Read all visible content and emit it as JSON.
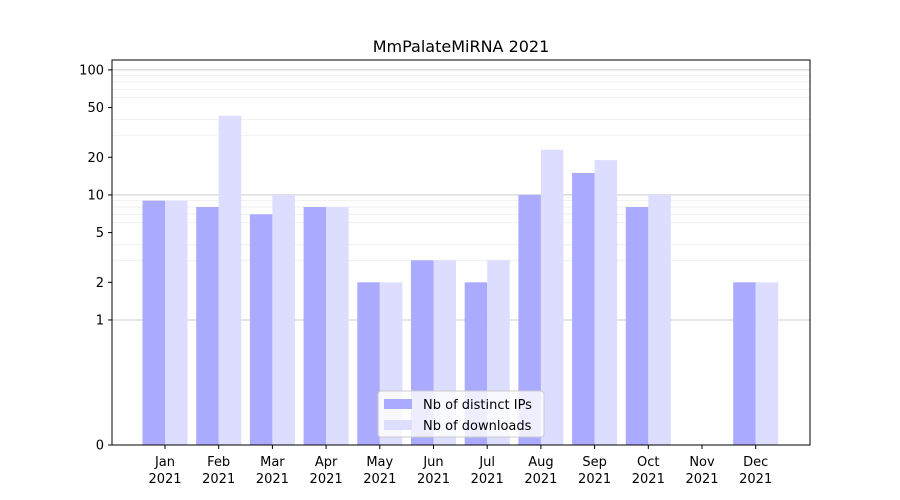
{
  "chart_data": {
    "type": "bar",
    "title": "MmPalateMiRNA 2021",
    "xlabel": "",
    "ylabel": "",
    "y_scale": "symlog",
    "ylim": [
      0,
      120
    ],
    "y_ticks": [
      0,
      1,
      2,
      5,
      10,
      20,
      50,
      100
    ],
    "y_tick_labels": [
      "0",
      "1",
      "2",
      "5",
      "10",
      "20",
      "50",
      "100"
    ],
    "grid": "horizontal",
    "legend_position": "bottom-center",
    "categories": [
      "Jan\n2021",
      "Feb\n2021",
      "Mar\n2021",
      "Apr\n2021",
      "May\n2021",
      "Jun\n2021",
      "Jul\n2021",
      "Aug\n2021",
      "Sep\n2021",
      "Oct\n2021",
      "Nov\n2021",
      "Dec\n2021"
    ],
    "series": [
      {
        "name": "Nb of distinct IPs",
        "color": "#aaaaff",
        "values": [
          9,
          8,
          7,
          8,
          2,
          3,
          2,
          10,
          15,
          8,
          0,
          2
        ]
      },
      {
        "name": "Nb of downloads",
        "color": "#ddddff",
        "values": [
          9,
          43,
          10,
          8,
          2,
          3,
          3,
          23,
          19,
          10,
          0,
          2
        ]
      }
    ]
  }
}
